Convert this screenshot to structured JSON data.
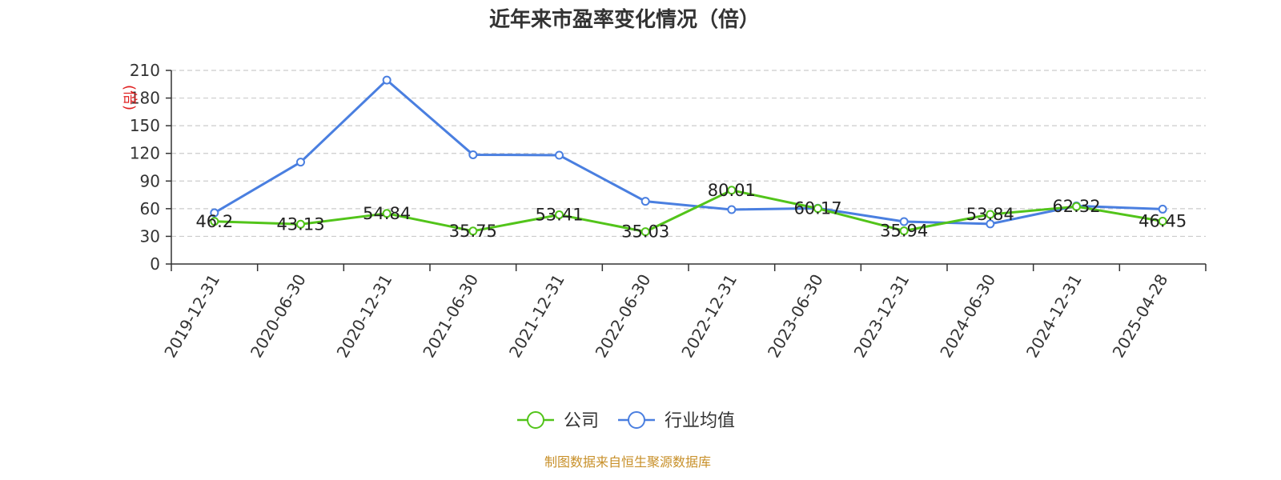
{
  "chart_data": {
    "type": "line",
    "title": "近年来市盈率变化情况（倍）",
    "ylabel": "(倍)",
    "ylim": [
      0,
      210
    ],
    "yticks": [
      0,
      30,
      60,
      90,
      120,
      150,
      180,
      210
    ],
    "categories": [
      "2019-12-31",
      "2020-06-30",
      "2020-12-31",
      "2021-06-30",
      "2021-12-31",
      "2022-06-30",
      "2022-12-31",
      "2023-06-30",
      "2023-12-31",
      "2024-06-30",
      "2024-12-31",
      "2025-04-28"
    ],
    "series": [
      {
        "name": "公司",
        "color": "#52c41a",
        "values": [
          46.2,
          43.13,
          54.84,
          35.75,
          53.41,
          35.03,
          80.01,
          60.17,
          35.94,
          53.84,
          62.32,
          46.45
        ],
        "labels": [
          "46.2",
          "43.13",
          "54.84",
          "35.75",
          "53.41",
          "35.03",
          "80.01",
          "60.17",
          "35.94",
          "53.84",
          "62.32",
          "46.45"
        ]
      },
      {
        "name": "行业均值",
        "color": "#4a7fe0",
        "values": [
          55.5,
          110.5,
          199.5,
          118.5,
          118,
          68,
          59,
          60.5,
          46,
          43.5,
          63,
          59.5
        ]
      }
    ],
    "grid": "dashed horizontal",
    "legend_position": "bottom-center",
    "source": "制图数据来自恒生聚源数据库"
  }
}
